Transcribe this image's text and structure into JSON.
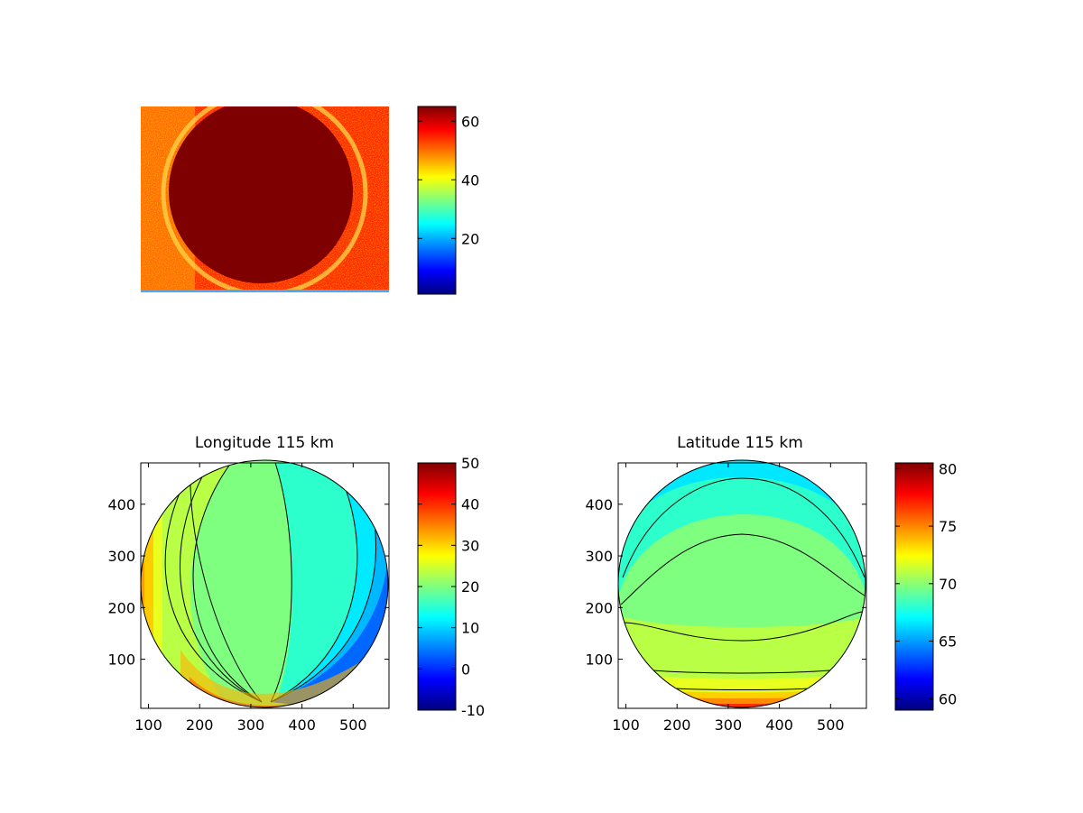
{
  "colors": {
    "jet": [
      "#00007f",
      "#0000ff",
      "#007fff",
      "#00ffff",
      "#7fff7f",
      "#ffff00",
      "#ff7f00",
      "#ff0000",
      "#7f0000"
    ],
    "frame": "#000000",
    "contour_line": "#000000"
  },
  "chart_data": [
    {
      "type": "heatmap",
      "title": "",
      "description_visible": "noisy image with a saturated disk in the center",
      "axes_visible": false,
      "colorbar": {
        "ticks": [
          "20",
          "40",
          "60"
        ],
        "range": [
          1,
          65
        ],
        "colormap": "jet"
      }
    },
    {
      "type": "heatmap",
      "title": "Longitude 115 km",
      "xlabel": "",
      "ylabel": "",
      "xticks": [
        "100",
        "200",
        "300",
        "400",
        "500"
      ],
      "yticks": [
        "100",
        "200",
        "300",
        "400"
      ],
      "xlim": [
        85,
        570
      ],
      "ylim": [
        5,
        480
      ],
      "disk": {
        "cx": 327,
        "cy": 243,
        "r": 240
      },
      "contour_levels": [
        {
          "x_left": 90,
          "x_right": 170,
          "value": 30,
          "color": "#ffcc00"
        },
        {
          "x_left": 170,
          "x_right": 210,
          "value": 25,
          "color": "#b8ff46"
        },
        {
          "x_left": 210,
          "x_right": 325,
          "value": 20,
          "color": "#7fff7f"
        },
        {
          "x_left": 325,
          "x_right": 420,
          "value": 15,
          "color": "#2cffcc"
        },
        {
          "x_left": 420,
          "x_right": 470,
          "value": 10,
          "color": "#00e7ff"
        },
        {
          "x_left": 470,
          "x_right": 520,
          "value": 5,
          "color": "#00a8ff"
        },
        {
          "x_left": 520,
          "x_right": 570,
          "value": 0,
          "color": "#0068ff"
        }
      ],
      "colorbar": {
        "ticks": [
          "-10",
          "0",
          "10",
          "20",
          "30",
          "40",
          "50"
        ],
        "range": [
          -10,
          50
        ],
        "colormap": "jet"
      }
    },
    {
      "type": "heatmap",
      "title": "Latitude 115 km",
      "xlabel": "",
      "ylabel": "",
      "xticks": [
        "100",
        "200",
        "300",
        "400",
        "500"
      ],
      "yticks": [
        "100",
        "200",
        "300",
        "400"
      ],
      "xlim": [
        85,
        570
      ],
      "ylim": [
        5,
        480
      ],
      "disk": {
        "cx": 327,
        "cy": 243,
        "r": 240
      },
      "contour_levels": [
        {
          "y_bottom": 5,
          "y_top": 40,
          "value": 76,
          "color": "#ff4000"
        },
        {
          "y_bottom": 40,
          "y_top": 75,
          "value": 72,
          "color": "#ffd000"
        },
        {
          "y_bottom": 75,
          "y_top": 135,
          "value": 71,
          "color": "#b8ff46"
        },
        {
          "y_bottom": 135,
          "y_top": 340,
          "value": 69,
          "color": "#7fff7f"
        },
        {
          "y_bottom": 340,
          "y_top": 450,
          "value": 67,
          "color": "#2cffcc"
        },
        {
          "y_bottom": 450,
          "y_top": 480,
          "value": 65,
          "color": "#00e7ff"
        }
      ],
      "colorbar": {
        "ticks": [
          "60",
          "65",
          "70",
          "75",
          "80"
        ],
        "range": [
          59,
          80.5
        ],
        "colormap": "jet"
      }
    }
  ]
}
